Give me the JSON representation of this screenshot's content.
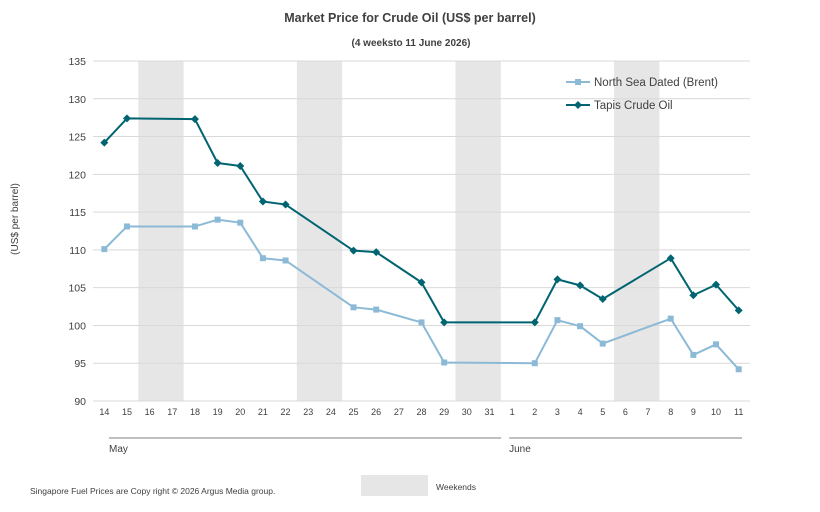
{
  "chart_data": {
    "type": "line",
    "title": "Market Price for Crude  Oil (US$ per barrel)",
    "subtitle": "(4 weeksto 11 June 2026)",
    "ylabel": "(US$ per barrel)",
    "xlabel": "",
    "ylim": [
      90,
      135
    ],
    "yticks": [
      "90",
      "95",
      "100",
      "105",
      "110",
      "115",
      "120",
      "125",
      "130",
      "135"
    ],
    "categories": [
      "14",
      "15",
      "16",
      "17",
      "18",
      "19",
      "20",
      "21",
      "22",
      "23",
      "24",
      "25",
      "26",
      "27",
      "28",
      "29",
      "30",
      "31",
      "1",
      "2",
      "3",
      "4",
      "5",
      "6",
      "7",
      "8",
      "9",
      "10",
      "11"
    ],
    "months": [
      "May",
      "June"
    ],
    "weekend_bands": [
      [
        "16",
        "17"
      ],
      [
        "23",
        "24"
      ],
      [
        "30",
        "31"
      ],
      [
        "6",
        "7"
      ]
    ],
    "grid": true,
    "legend_position": "top-right",
    "series": [
      {
        "name": "North Sea Dated (Brent)",
        "color": "#8cbad6",
        "marker": "square",
        "points": [
          [
            "14",
            110.1
          ],
          [
            "15",
            113.1
          ],
          [
            "18",
            113.1
          ],
          [
            "19",
            114.0
          ],
          [
            "20",
            113.6
          ],
          [
            "21",
            108.9
          ],
          [
            "22",
            108.6
          ],
          [
            "25",
            102.4
          ],
          [
            "26",
            102.1
          ],
          [
            "28",
            100.4
          ],
          [
            "29",
            95.1
          ],
          [
            "2",
            95.0
          ],
          [
            "3",
            100.7
          ],
          [
            "4",
            99.9
          ],
          [
            "5",
            97.6
          ],
          [
            "8",
            100.9
          ],
          [
            "9",
            96.1
          ],
          [
            "10",
            97.5
          ],
          [
            "11",
            94.2
          ]
        ]
      },
      {
        "name": "Tapis Crude Oil",
        "color": "#006471",
        "marker": "diamond",
        "points": [
          [
            "14",
            124.2
          ],
          [
            "15",
            127.4
          ],
          [
            "18",
            127.3
          ],
          [
            "19",
            121.5
          ],
          [
            "20",
            121.1
          ],
          [
            "21",
            116.4
          ],
          [
            "22",
            116.0
          ],
          [
            "25",
            109.9
          ],
          [
            "26",
            109.7
          ],
          [
            "28",
            105.7
          ],
          [
            "29",
            100.4
          ],
          [
            "2",
            100.4
          ],
          [
            "3",
            106.1
          ],
          [
            "4",
            105.3
          ],
          [
            "5",
            103.5
          ],
          [
            "8",
            108.9
          ],
          [
            "9",
            104.0
          ],
          [
            "10",
            105.4
          ],
          [
            "11",
            102.0
          ]
        ]
      }
    ],
    "weekend_legend_label": "Weekends",
    "weekend_color": "#e6e6e6",
    "footer": "Singapore  Fuel Prices are  Copy right © 2026 Argus Media  group."
  }
}
